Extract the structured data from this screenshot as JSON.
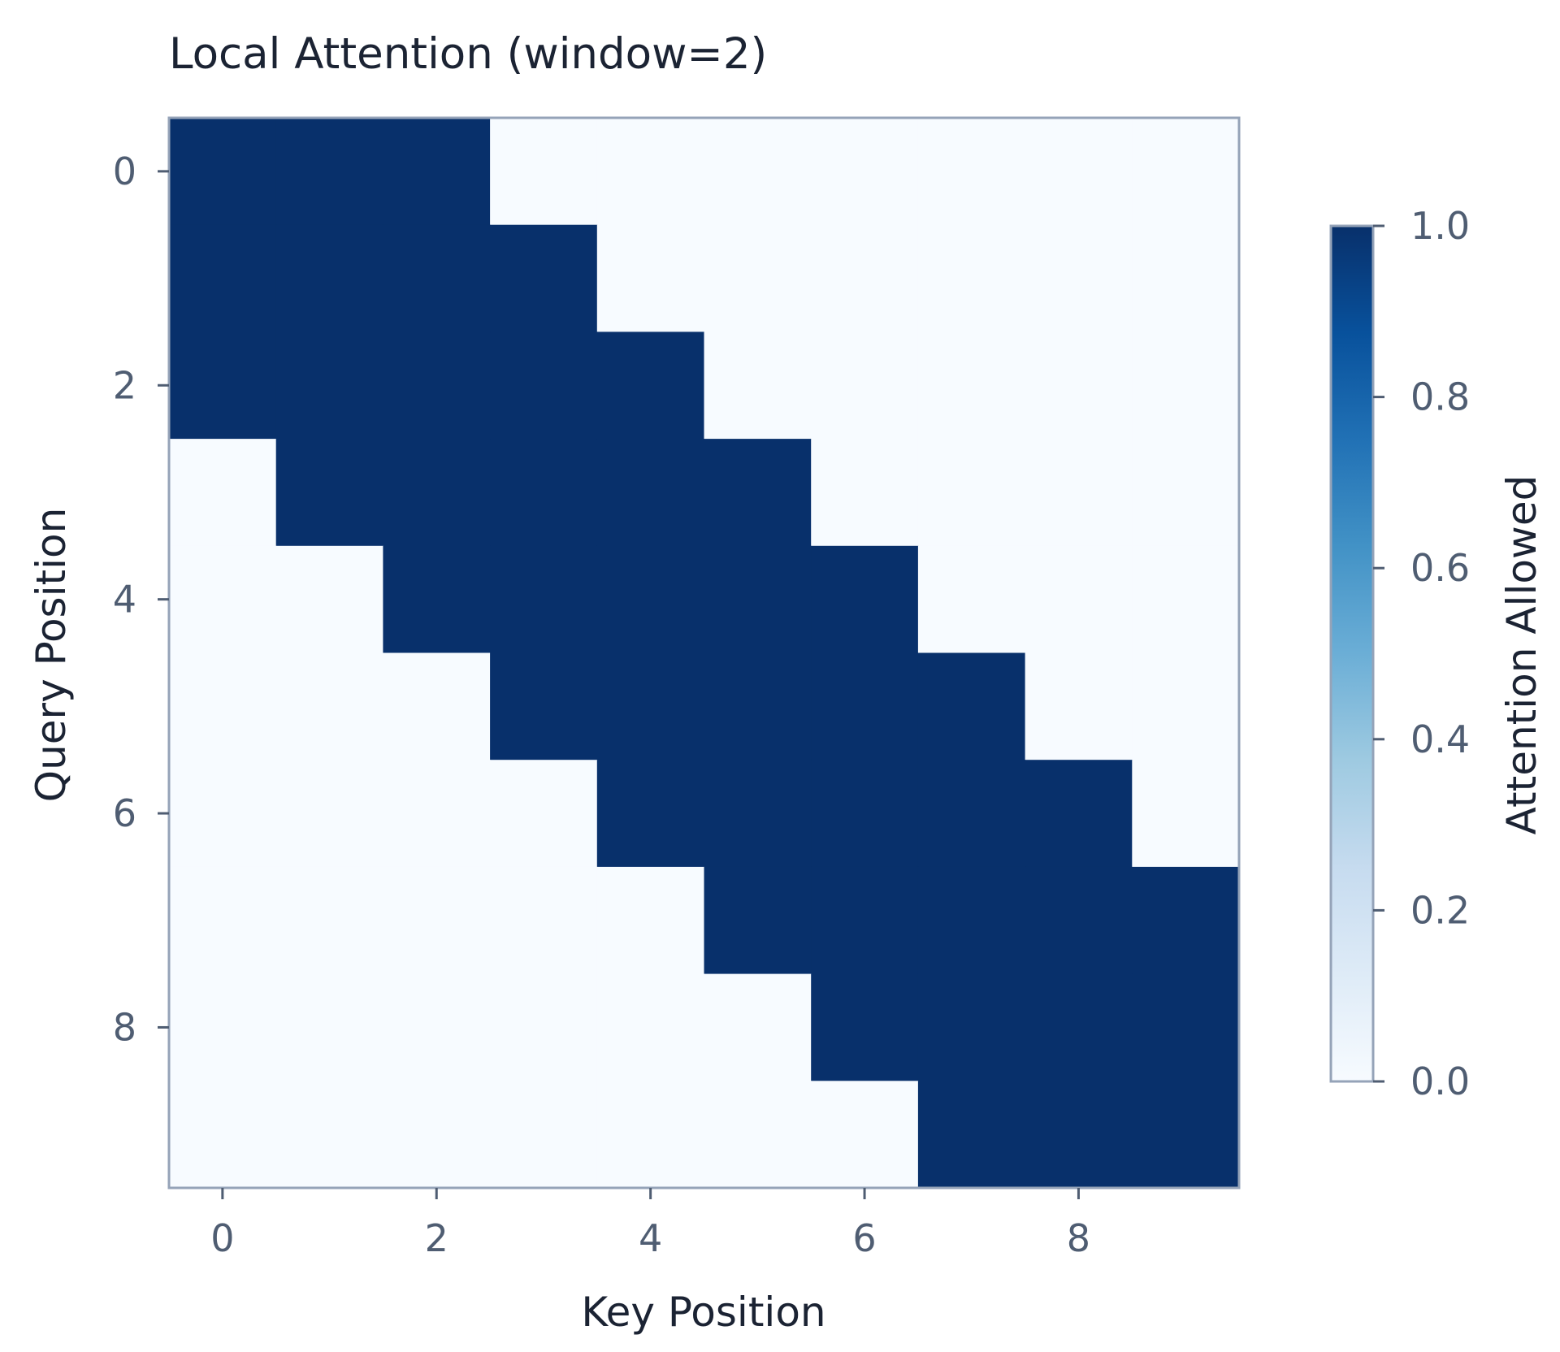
{
  "chart_data": {
    "type": "heatmap",
    "title": "Local Attention (window=2)",
    "xlabel": "Key Position",
    "ylabel": "Query Position",
    "x_ticks": [
      "0",
      "2",
      "4",
      "6",
      "8"
    ],
    "y_ticks": [
      "0",
      "2",
      "4",
      "6",
      "8"
    ],
    "x_tick_values": [
      0,
      2,
      4,
      6,
      8
    ],
    "y_tick_values": [
      0,
      2,
      4,
      6,
      8
    ],
    "xlim": [
      -0.5,
      9.5
    ],
    "ylim": [
      9.5,
      -0.5
    ],
    "matrix": [
      [
        1,
        1,
        1,
        0,
        0,
        0,
        0,
        0,
        0,
        0
      ],
      [
        1,
        1,
        1,
        1,
        0,
        0,
        0,
        0,
        0,
        0
      ],
      [
        1,
        1,
        1,
        1,
        1,
        0,
        0,
        0,
        0,
        0
      ],
      [
        0,
        1,
        1,
        1,
        1,
        1,
        0,
        0,
        0,
        0
      ],
      [
        0,
        0,
        1,
        1,
        1,
        1,
        1,
        0,
        0,
        0
      ],
      [
        0,
        0,
        0,
        1,
        1,
        1,
        1,
        1,
        0,
        0
      ],
      [
        0,
        0,
        0,
        0,
        1,
        1,
        1,
        1,
        1,
        0
      ],
      [
        0,
        0,
        0,
        0,
        0,
        1,
        1,
        1,
        1,
        1
      ],
      [
        0,
        0,
        0,
        0,
        0,
        0,
        1,
        1,
        1,
        1
      ],
      [
        0,
        0,
        0,
        0,
        0,
        0,
        0,
        1,
        1,
        1
      ]
    ],
    "colormap": "Blues",
    "color_min": "#f7fbff",
    "color_max": "#08306b",
    "colorbar": {
      "label": "Attention Allowed",
      "range": [
        0.0,
        1.0
      ],
      "ticks": [
        "0.0",
        "0.2",
        "0.4",
        "0.6",
        "0.8",
        "1.0"
      ],
      "tick_values": [
        0.0,
        0.2,
        0.4,
        0.6,
        0.8,
        1.0
      ]
    },
    "grid": false
  }
}
